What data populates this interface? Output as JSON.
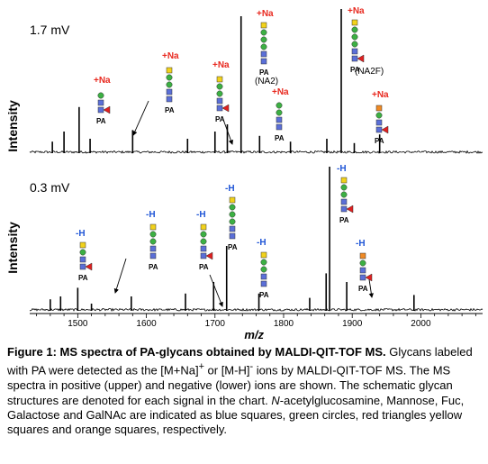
{
  "chart_data": [
    {
      "type": "line",
      "panel": "upper",
      "title": "1.7 mV",
      "ylabel": "Intensity",
      "xlabel": "m/z",
      "xlim": [
        1430,
        2090
      ],
      "annotations": [
        "+Na",
        "+Na",
        "+Na",
        "+Na",
        "+Na",
        "+Na",
        "+Na"
      ],
      "glycan_labels": [
        "(NA2)",
        "(NA2F)"
      ],
      "pa_label": "PA",
      "peaks": [
        {
          "x": 1463,
          "y": 0.08
        },
        {
          "x": 1480,
          "y": 0.15
        },
        {
          "x": 1502,
          "y": 0.32
        },
        {
          "x": 1518,
          "y": 0.1
        },
        {
          "x": 1580,
          "y": 0.16
        },
        {
          "x": 1660,
          "y": 0.1
        },
        {
          "x": 1700,
          "y": 0.15
        },
        {
          "x": 1718,
          "y": 0.2
        },
        {
          "x": 1738,
          "y": 0.95
        },
        {
          "x": 1765,
          "y": 0.12
        },
        {
          "x": 1810,
          "y": 0.08
        },
        {
          "x": 1863,
          "y": 0.1
        },
        {
          "x": 1884,
          "y": 1.0
        },
        {
          "x": 1903,
          "y": 0.07
        },
        {
          "x": 1940,
          "y": 0.13
        }
      ]
    },
    {
      "type": "line",
      "panel": "lower",
      "title": "0.3 mV",
      "ylabel": "Intensity",
      "xlabel": "m/z",
      "xlim": [
        1430,
        2090
      ],
      "xticks": [
        1500,
        1600,
        1700,
        1800,
        1900,
        2000
      ],
      "annotations": [
        "-H",
        "-H",
        "-H",
        "-H",
        "-H",
        "-H",
        "-H"
      ],
      "pa_label": "PA",
      "peaks": [
        {
          "x": 1460,
          "y": 0.08
        },
        {
          "x": 1475,
          "y": 0.1
        },
        {
          "x": 1500,
          "y": 0.16
        },
        {
          "x": 1520,
          "y": 0.05
        },
        {
          "x": 1578,
          "y": 0.1
        },
        {
          "x": 1657,
          "y": 0.12
        },
        {
          "x": 1698,
          "y": 0.2
        },
        {
          "x": 1717,
          "y": 0.45
        },
        {
          "x": 1764,
          "y": 0.12
        },
        {
          "x": 1838,
          "y": 0.09
        },
        {
          "x": 1862,
          "y": 0.26
        },
        {
          "x": 1867,
          "y": 1.0
        },
        {
          "x": 1892,
          "y": 0.2
        },
        {
          "x": 1990,
          "y": 0.11
        }
      ]
    }
  ],
  "caption": {
    "title": "Figure 1: MS spectra of PA-glycans obtained by MALDI-QIT-TOF MS.",
    "body1": " Glycans labeled with PA were detected as the [M+Na]",
    "sup1": "+",
    "body2": " or [M-H]",
    "sup2": "-",
    "body3": " ions by MALDI-QIT-TOF MS. The MS spectra in positive (upper) and negative (lower) ions are shown. The schematic glycan structures are denoted for each signal in the chart.  ",
    "italic": "N",
    "body4": "-acetylglucosamine, Mannose, Fuc, Galactose and GalNAc are indicated as blue squares, green circles, red triangles yellow squares and orange squares, respectively."
  },
  "colors": {
    "glcnac": "#5b6fd8",
    "mannose": "#3cb043",
    "fucose": "#e02020",
    "galactose": "#f2d21b",
    "galnac": "#f08a24",
    "na_label": "#e8281e",
    "h_label": "#1f55d6"
  }
}
